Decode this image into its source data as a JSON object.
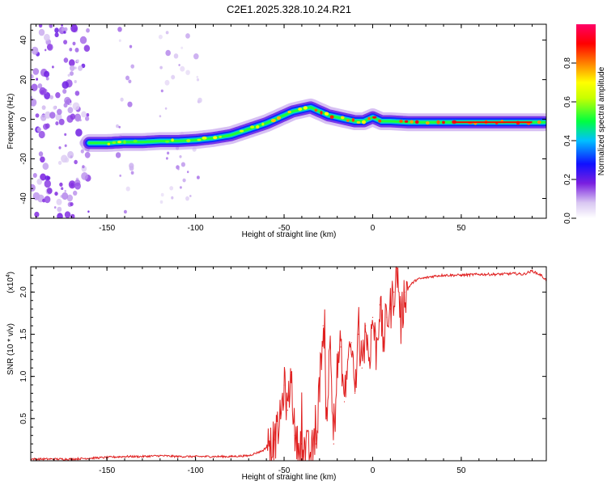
{
  "figure_title": "C2E1.2025.328.10.24.R21",
  "chart_data": [
    {
      "type": "heatmap",
      "title": "C2E1.2025.328.10.24.R21",
      "xlabel": "Height of straight line (km)",
      "ylabel": "Frequency (Hz)",
      "xlim": [
        -193,
        98
      ],
      "ylim": [
        -50,
        48
      ],
      "xticks": [
        -150,
        -100,
        -50,
        0,
        50
      ],
      "xtick_labels": [
        "-150",
        "-100",
        "-50",
        "0",
        "50"
      ],
      "yticks": [
        -40,
        -20,
        0,
        20,
        40
      ],
      "ytick_labels": [
        "-40",
        "-20",
        "0",
        "20",
        "40"
      ],
      "colorbar": {
        "label": "Normalized spectral amplitude",
        "range": [
          0,
          1
        ],
        "ticks": [
          0.0,
          0.2,
          0.4,
          0.6,
          0.8
        ],
        "tick_labels": [
          "0.0",
          "0.2",
          "0.4",
          "0.6",
          "0.8"
        ],
        "colors": [
          "#ffffff",
          "#d9c7f2",
          "#7a1fe0",
          "#1010ff",
          "#00c0ff",
          "#00ff40",
          "#c8ff00",
          "#ffff00",
          "#ff8000",
          "#ff0000",
          "#ff0066"
        ]
      },
      "ridge": {
        "height_km": [
          -160,
          -150,
          -140,
          -130,
          -120,
          -110,
          -100,
          -90,
          -80,
          -70,
          -60,
          -55,
          -50,
          -45,
          -40,
          -35,
          -30,
          -25,
          -20,
          -15,
          -10,
          -5,
          0,
          5,
          10,
          20,
          30,
          40,
          50,
          60,
          70,
          80,
          90,
          97
        ],
        "frequency_hz": [
          -12,
          -12,
          -11.5,
          -11.5,
          -11,
          -11,
          -10.5,
          -9.5,
          -8,
          -5,
          -2,
          0,
          2,
          4,
          5,
          6,
          4,
          2,
          1,
          0,
          -1,
          -1,
          1,
          -1,
          -1,
          -1.5,
          -1.5,
          -1.5,
          -1.5,
          -1.5,
          -1.5,
          -1.5,
          -1.5,
          -1.5
        ]
      },
      "noise_bands_km": [
        [
          -193,
          -160
        ],
        [
          -145,
          -135
        ],
        [
          -120,
          -97
        ]
      ]
    },
    {
      "type": "line",
      "xlabel": "Height of straight line (km)",
      "ylabel": "SNR (10 * v/v)",
      "y_multiplier": "(x10",
      "y_multiplier_exp": "4",
      "xlim": [
        -193,
        98
      ],
      "ylim": [
        0,
        2.3
      ],
      "xticks": [
        -150,
        -100,
        -50,
        0,
        50
      ],
      "xtick_labels": [
        "-150",
        "-100",
        "-50",
        "0",
        "50"
      ],
      "yticks": [
        0.5,
        1.0,
        1.5,
        2.0
      ],
      "ytick_labels": [
        "0.5",
        "1.0",
        "1.5",
        "2.0"
      ],
      "line_color": "#e02020",
      "series": {
        "x": [
          -193,
          -170,
          -160,
          -150,
          -140,
          -130,
          -120,
          -110,
          -100,
          -90,
          -80,
          -70,
          -62,
          -58,
          -55,
          -52,
          -50,
          -48,
          -46,
          -44,
          -42,
          -40,
          -38,
          -35,
          -32,
          -30,
          -28,
          -26,
          -24,
          -22,
          -20,
          -18,
          -16,
          -14,
          -12,
          -10,
          -8,
          -6,
          -4,
          -2,
          0,
          2,
          4,
          6,
          8,
          10,
          12,
          14,
          16,
          18,
          20,
          22,
          25,
          30,
          35,
          40,
          50,
          60,
          70,
          80,
          85,
          90,
          95,
          98
        ],
        "y": [
          0.02,
          0.02,
          0.03,
          0.04,
          0.05,
          0.05,
          0.06,
          0.05,
          0.05,
          0.05,
          0.05,
          0.06,
          0.12,
          0.2,
          0.25,
          0.5,
          0.9,
          0.6,
          1.05,
          0.3,
          0.15,
          0.2,
          0.15,
          0.1,
          0.2,
          0.9,
          1.6,
          0.5,
          1.4,
          0.2,
          1.1,
          1.35,
          0.7,
          1.2,
          1.4,
          0.8,
          1.5,
          1.1,
          1.6,
          1.2,
          1.7,
          1.3,
          1.85,
          1.4,
          1.7,
          1.8,
          2.0,
          2.28,
          1.6,
          2.0,
          2.05,
          2.1,
          2.15,
          2.17,
          2.19,
          2.2,
          2.2,
          2.21,
          2.21,
          2.22,
          2.21,
          2.25,
          2.2,
          2.14
        ]
      }
    }
  ]
}
